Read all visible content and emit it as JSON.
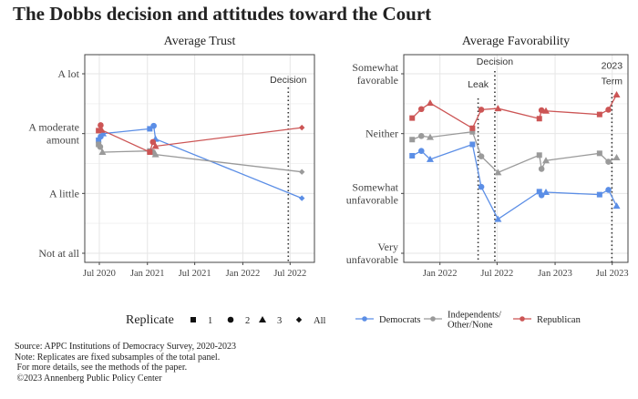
{
  "title": "The Dobbs decision and attitudes toward the Court",
  "colors": {
    "Democrats": "#5B8EE6",
    "Independents/Other/None": "#9A9A9A",
    "Republican": "#CC5555"
  },
  "legend": {
    "replicate_title": "Replicate",
    "replicates": [
      {
        "label": "1",
        "shape": "square"
      },
      {
        "label": "2",
        "shape": "circle"
      },
      {
        "label": "3",
        "shape": "triangle"
      },
      {
        "label": "All",
        "shape": "diamond"
      }
    ],
    "parties": [
      "Democrats",
      "Independents/\nOther/None",
      "Republican"
    ]
  },
  "chart_data": [
    {
      "type": "line",
      "title": "Average Trust",
      "y_ticks": [
        {
          "value": 1,
          "label": "Not at all"
        },
        {
          "value": 2,
          "label": "A little"
        },
        {
          "value": 3,
          "label": "A moderate\namount"
        },
        {
          "value": 4,
          "label": "A lot"
        }
      ],
      "ylim": [
        0.9,
        4.3
      ],
      "x_ticks": [
        {
          "date": "2020-07-01",
          "label": "Jul 2020"
        },
        {
          "date": "2021-01-01",
          "label": "Jan 2021"
        },
        {
          "date": "2021-07-01",
          "label": "Jul 2021"
        },
        {
          "date": "2022-01-01",
          "label": "Jan 2022"
        },
        {
          "date": "2022-07-01",
          "label": "Jul 2022"
        }
      ],
      "grid": true,
      "events": [
        {
          "date": "2022-06-24",
          "label": "Decision"
        }
      ],
      "series": [
        {
          "name": "Democrats",
          "points": [
            [
              "2020-06-28",
              2.89,
              "1"
            ],
            [
              "2020-07-06",
              2.95,
              "2"
            ],
            [
              "2020-07-15",
              3.0,
              "3"
            ],
            [
              "2021-01-10",
              3.08,
              "1"
            ],
            [
              "2021-01-25",
              3.13,
              "2"
            ],
            [
              "2021-02-01",
              2.91,
              "3"
            ],
            [
              "2022-08-15",
              1.92,
              "All"
            ]
          ]
        },
        {
          "name": "Independents/Other/None",
          "points": [
            [
              "2020-06-28",
              2.82,
              "1"
            ],
            [
              "2020-07-04",
              2.78,
              "2"
            ],
            [
              "2020-07-13",
              2.69,
              "3"
            ],
            [
              "2021-01-10",
              2.71,
              "1"
            ],
            [
              "2021-01-22",
              2.69,
              "2"
            ],
            [
              "2021-02-01",
              2.65,
              "3"
            ],
            [
              "2022-08-15",
              2.36,
              "All"
            ]
          ]
        },
        {
          "name": "Republican",
          "points": [
            [
              "2020-06-28",
              3.05,
              "1"
            ],
            [
              "2020-07-06",
              3.14,
              "2"
            ],
            [
              "2020-07-10",
              3.06,
              "3"
            ],
            [
              "2021-01-10",
              2.69,
              "1"
            ],
            [
              "2021-01-22",
              2.86,
              "2"
            ],
            [
              "2021-02-01",
              2.79,
              "3"
            ],
            [
              "2022-08-15",
              3.1,
              "All"
            ]
          ]
        }
      ]
    },
    {
      "type": "line",
      "title": "Average Favorability",
      "y_ticks": [
        {
          "value": 1,
          "label": "Very\nunfavorable"
        },
        {
          "value": 2,
          "label": "Somewhat\nunfavorable"
        },
        {
          "value": 3,
          "label": "Neither"
        },
        {
          "value": 4,
          "label": "Somewhat\nfavorable"
        }
      ],
      "ylim": [
        0.9,
        4.3
      ],
      "x_ticks": [
        {
          "date": "2022-01-01",
          "label": "Jan 2022"
        },
        {
          "date": "2022-07-01",
          "label": "Jul 2022"
        },
        {
          "date": "2023-01-01",
          "label": "Jan 2023"
        },
        {
          "date": "2023-07-01",
          "label": "Jul 2023"
        }
      ],
      "grid": true,
      "events": [
        {
          "date": "2022-05-02",
          "label": "Leak"
        },
        {
          "date": "2022-06-24",
          "label": "Decision"
        },
        {
          "date": "2023-06-30",
          "label": "2023\nTerm"
        }
      ],
      "series": [
        {
          "name": "Democrats",
          "points": [
            [
              "2021-10-05",
              2.63,
              "1"
            ],
            [
              "2021-11-03",
              2.71,
              "2"
            ],
            [
              "2021-12-01",
              2.57,
              "3"
            ],
            [
              "2022-04-14",
              2.82,
              "1"
            ],
            [
              "2022-05-12",
              2.11,
              "2"
            ],
            [
              "2022-07-04",
              1.57,
              "3"
            ],
            [
              "2022-11-12",
              2.03,
              "1"
            ],
            [
              "2022-11-19",
              1.97,
              "2"
            ],
            [
              "2022-12-03",
              2.02,
              "3"
            ],
            [
              "2023-05-22",
              1.98,
              "1"
            ],
            [
              "2023-06-19",
              2.06,
              "2"
            ],
            [
              "2023-07-15",
              1.79,
              "3"
            ]
          ]
        },
        {
          "name": "Independents/Other/None",
          "points": [
            [
              "2021-10-05",
              2.9,
              "1"
            ],
            [
              "2021-11-03",
              2.96,
              "2"
            ],
            [
              "2021-12-01",
              2.94,
              "3"
            ],
            [
              "2022-04-14",
              3.03,
              "1"
            ],
            [
              "2022-05-12",
              2.62,
              "2"
            ],
            [
              "2022-07-04",
              2.35,
              "3"
            ],
            [
              "2022-11-12",
              2.64,
              "1"
            ],
            [
              "2022-11-19",
              2.41,
              "2"
            ],
            [
              "2022-12-03",
              2.55,
              "3"
            ],
            [
              "2023-05-22",
              2.67,
              "1"
            ],
            [
              "2023-06-19",
              2.53,
              "2"
            ],
            [
              "2023-07-15",
              2.6,
              "3"
            ]
          ]
        },
        {
          "name": "Republican",
          "points": [
            [
              "2021-10-05",
              3.26,
              "1"
            ],
            [
              "2021-11-03",
              3.41,
              "2"
            ],
            [
              "2021-12-01",
              3.51,
              "3"
            ],
            [
              "2022-04-14",
              3.09,
              "1"
            ],
            [
              "2022-05-12",
              3.4,
              "2"
            ],
            [
              "2022-07-04",
              3.42,
              "3"
            ],
            [
              "2022-11-12",
              3.25,
              "1"
            ],
            [
              "2022-11-19",
              3.39,
              "2"
            ],
            [
              "2022-12-03",
              3.38,
              "3"
            ],
            [
              "2023-05-22",
              3.32,
              "1"
            ],
            [
              "2023-06-19",
              3.4,
              "2"
            ],
            [
              "2023-07-15",
              3.65,
              "3"
            ]
          ]
        }
      ]
    }
  ],
  "footer": [
    "Source: APPC Institutions of Democracy Survey, 2020-2023",
    "Note: Replicates are fixed subsamples of the total panel.",
    " For more details, see the methods of the paper.",
    " ©2023 Annenberg Public Policy Center"
  ]
}
